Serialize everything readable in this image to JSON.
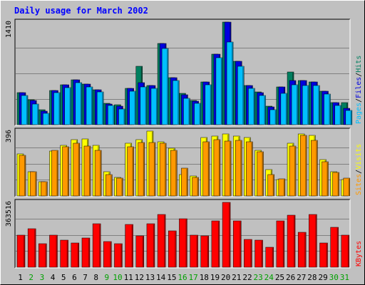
{
  "chart_data": {
    "type": "bar",
    "title": "Daily usage for March 2002",
    "days": [
      "1",
      "2",
      "3",
      "4",
      "5",
      "6",
      "7",
      "8",
      "9",
      "10",
      "11",
      "12",
      "13",
      "14",
      "15",
      "16",
      "17",
      "18",
      "19",
      "20",
      "21",
      "22",
      "23",
      "24",
      "25",
      "26",
      "27",
      "28",
      "29",
      "30",
      "31"
    ],
    "weekend_days": [
      "2",
      "3",
      "9",
      "10",
      "16",
      "17",
      "23",
      "24",
      "30",
      "31"
    ],
    "panels": [
      {
        "name": "hits_files_pages",
        "max_label": "1410",
        "ymax": 1410,
        "legend": [
          "Pages",
          "/",
          "Files",
          "/",
          "Hits"
        ],
        "series": [
          {
            "name": "Hits",
            "color": "#007f5f",
            "values": [
              440,
              340,
              210,
              470,
              550,
              620,
              560,
              480,
              290,
              270,
              500,
              800,
              540,
              1120,
              650,
              430,
              330,
              590,
              970,
              1410,
              870,
              540,
              450,
              250,
              520,
              720,
              610,
              590,
              460,
              300,
              300
            ]
          },
          {
            "name": "Files",
            "color": "#0000e0",
            "values": [
              440,
              330,
              190,
              470,
              550,
              620,
              560,
              480,
              280,
              250,
              500,
              580,
              540,
              1120,
              650,
              410,
              320,
              590,
              970,
              1410,
              870,
              540,
              440,
              240,
              520,
              610,
              610,
              590,
              460,
              300,
              230
            ]
          },
          {
            "name": "Pages",
            "color": "#00bfff",
            "values": [
              400,
              280,
              160,
              440,
              510,
              580,
              520,
              450,
              260,
              220,
              460,
              520,
              500,
              1050,
              610,
              360,
              290,
              550,
              920,
              1140,
              800,
              500,
              400,
              210,
              430,
              550,
              540,
              540,
              420,
              260,
              200
            ]
          }
        ]
      },
      {
        "name": "visits_sites",
        "max_label": "396",
        "ymax": 396,
        "legend": [
          "Sites",
          "/",
          "Visits"
        ],
        "series": [
          {
            "name": "Visits",
            "color": "#ffff00",
            "values": [
              255,
              150,
              85,
              275,
              310,
              345,
              350,
              310,
              150,
              115,
              320,
              345,
              396,
              330,
              290,
              130,
              120,
              355,
              365,
              380,
              365,
              355,
              280,
              160,
              100,
              320,
              380,
              370,
              220,
              150,
              100
            ]
          },
          {
            "name": "Sites",
            "color": "#ff9900",
            "values": [
              250,
              150,
              85,
              280,
              300,
              320,
              305,
              280,
              130,
              110,
              300,
              325,
              325,
              320,
              280,
              170,
              115,
              330,
              345,
              335,
              340,
              330,
              270,
              130,
              105,
              305,
              370,
              340,
              210,
              145,
              110
            ]
          }
        ]
      },
      {
        "name": "kbytes",
        "max_label": "363516",
        "ymax": 363516,
        "legend": [
          "KBytes"
        ],
        "series": [
          {
            "name": "KBytes",
            "color": "#ff0000",
            "values": [
              180000,
              215000,
              130000,
              180000,
              150000,
              135000,
              165000,
              245000,
              145000,
              130000,
              240000,
              175000,
              245000,
              295000,
              205000,
              270000,
              180000,
              175000,
              260000,
              363516,
              260000,
              155000,
              150000,
              110000,
              260000,
              290000,
              195000,
              295000,
              135000,
              225000,
              180000
            ]
          }
        ]
      }
    ]
  },
  "colors": {
    "background": "#c0c0c0",
    "border": "#000000",
    "title": "#0000ff",
    "weekday_label": "#000000",
    "weekend_label": "#00a000",
    "grid": "#808080"
  }
}
